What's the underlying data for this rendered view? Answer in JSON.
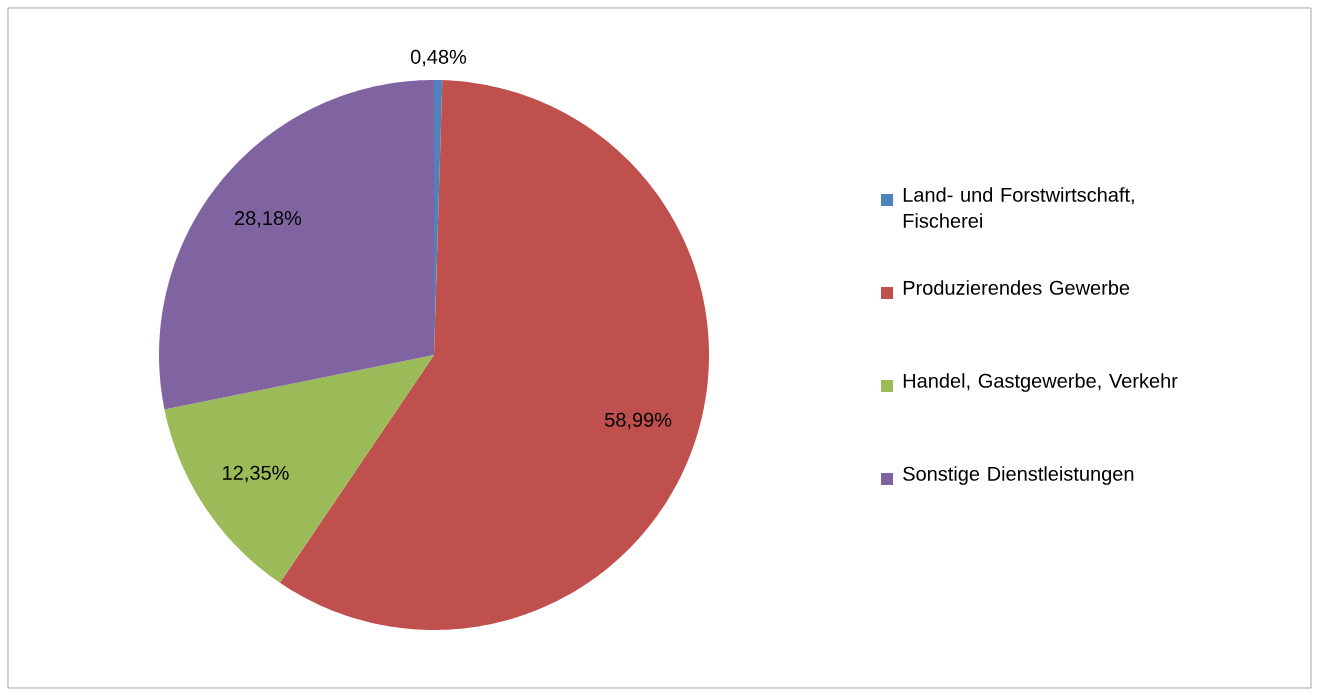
{
  "chart_data": {
    "type": "pie",
    "categories": [
      "Land- und Forstwirtschaft, Fischerei",
      "Produzierendes Gewerbe",
      "Handel, Gastgewerbe, Verkehr",
      "Sonstige Dienstleistungen"
    ],
    "values": [
      0.48,
      58.99,
      12.35,
      28.18
    ],
    "colors": [
      "#4f81bd",
      "#c0504d",
      "#9bbb59",
      "#8064a2"
    ],
    "value_labels": [
      "0,48%",
      "58,99%",
      "12,35%",
      "28,18%"
    ],
    "legend": "right"
  }
}
